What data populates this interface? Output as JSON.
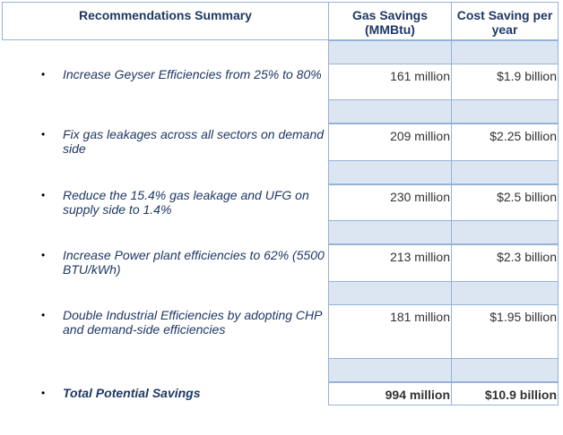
{
  "header": {
    "title": "Recommendations Summary",
    "gas": "Gas Savings (MMBtu)",
    "cost": "Cost Saving per year"
  },
  "rows": [
    {
      "text": "Increase Geyser Efficiencies from 25% to 80%",
      "gas": "161 million",
      "cost": "$1.9 billion"
    },
    {
      "text": "Fix gas leakages across all sectors on demand side",
      "gas": "209 million",
      "cost": "$2.25 billion"
    },
    {
      "text": "Reduce the 15.4% gas leakage and UFG on supply side to 1.4%",
      "gas": "230 million",
      "cost": "$2.5 billion"
    },
    {
      "text": "Increase Power plant efficiencies to 62% (5500 BTU/kWh)",
      "gas": "213 million",
      "cost": "$2.3 billion"
    },
    {
      "text": "Double Industrial Efficiencies by adopting CHP and demand-side efficiencies",
      "gas": "181 million",
      "cost": "$1.95 billion"
    }
  ],
  "total": {
    "text": "Total Potential Savings",
    "gas": "994 million",
    "cost": "$10.9 billion"
  }
}
